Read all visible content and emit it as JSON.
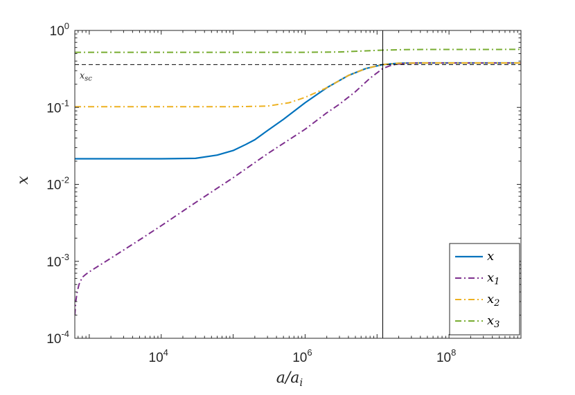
{
  "chart_data": {
    "type": "line",
    "xscale": "log",
    "yscale": "log",
    "xlim": [
      630,
      1000000000
    ],
    "ylim": [
      0.0001,
      1
    ],
    "xlabel": {
      "base": "a/a",
      "sub": "i"
    },
    "ylabel": "x",
    "x_ticks": [
      {
        "value": 10000,
        "base": "10",
        "exp": "4"
      },
      {
        "value": 1000000,
        "base": "10",
        "exp": "6"
      },
      {
        "value": 100000000,
        "base": "10",
        "exp": "8"
      }
    ],
    "y_ticks": [
      {
        "value": 0.0001,
        "base": "10",
        "exp": "-4"
      },
      {
        "value": 0.001,
        "base": "10",
        "exp": "-3"
      },
      {
        "value": 0.01,
        "base": "10",
        "exp": "-2"
      },
      {
        "value": 0.1,
        "base": "10",
        "exp": "-1"
      },
      {
        "value": 1,
        "base": "10",
        "exp": "0"
      }
    ],
    "grid": false,
    "legend_position": "bottom-right",
    "series": [
      {
        "name": "x",
        "sub": "",
        "color": "#0072BD",
        "dash": "solid",
        "width": 2.2,
        "points": [
          [
            630,
            0.0215
          ],
          [
            10000,
            0.0215
          ],
          [
            30000,
            0.0218
          ],
          [
            60000,
            0.024
          ],
          [
            100000,
            0.0275
          ],
          [
            150000,
            0.033
          ],
          [
            200000,
            0.038
          ],
          [
            300000,
            0.05
          ],
          [
            500000,
            0.07
          ],
          [
            1000000,
            0.115
          ],
          [
            2000000,
            0.18
          ],
          [
            4000000,
            0.26
          ],
          [
            7000000,
            0.32
          ],
          [
            12000000,
            0.36
          ],
          [
            20000000,
            0.375
          ],
          [
            40000000,
            0.378
          ],
          [
            1000000000,
            0.378
          ]
        ]
      },
      {
        "name": "x",
        "sub": "1",
        "color": "#7E2F8E",
        "dash": "dashdot",
        "width": 2,
        "points": [
          [
            630,
            0.0002
          ],
          [
            650,
            0.0003
          ],
          [
            680,
            0.0004
          ],
          [
            720,
            0.0005
          ],
          [
            800,
            0.00062
          ],
          [
            900,
            0.00068
          ],
          [
            1000,
            0.00073
          ],
          [
            2000,
            0.0011
          ],
          [
            5000,
            0.0019
          ],
          [
            10000,
            0.0029
          ],
          [
            30000,
            0.0058
          ],
          [
            100000,
            0.0122
          ],
          [
            300000,
            0.025
          ],
          [
            1000000,
            0.052
          ],
          [
            2000000,
            0.085
          ],
          [
            3000000,
            0.11
          ],
          [
            5000000,
            0.16
          ],
          [
            8000000,
            0.24
          ],
          [
            12000000,
            0.32
          ],
          [
            16000000,
            0.355
          ],
          [
            25000000,
            0.375
          ],
          [
            40000000,
            0.378
          ],
          [
            1000000000,
            0.378
          ]
        ]
      },
      {
        "name": "x",
        "sub": "2",
        "color": "#EDB120",
        "dash": "dashdot",
        "width": 2,
        "points": [
          [
            630,
            0.102
          ],
          [
            100000,
            0.102
          ],
          [
            300000,
            0.104
          ],
          [
            600000,
            0.115
          ],
          [
            1000000,
            0.135
          ],
          [
            2000000,
            0.18
          ],
          [
            4000000,
            0.26
          ],
          [
            7000000,
            0.32
          ],
          [
            12000000,
            0.36
          ],
          [
            20000000,
            0.375
          ],
          [
            40000000,
            0.378
          ],
          [
            1000000000,
            0.378
          ]
        ]
      },
      {
        "name": "x",
        "sub": "3",
        "color": "#77AC30",
        "dash": "dashdot",
        "width": 2,
        "points": [
          [
            630,
            0.52
          ],
          [
            1000000,
            0.52
          ],
          [
            3000000,
            0.525
          ],
          [
            6000000,
            0.54
          ],
          [
            12000000,
            0.555
          ],
          [
            30000000,
            0.565
          ],
          [
            1000000000,
            0.567
          ]
        ]
      }
    ],
    "reference_lines": [
      {
        "orientation": "horizontal",
        "value": 0.36,
        "label_base": "x",
        "label_sub": "sc",
        "color": "#000000",
        "dash": "dashed",
        "label_at_x": 1000
      },
      {
        "orientation": "vertical",
        "value": 12000000,
        "color": "#000000",
        "dash": "solid"
      }
    ]
  }
}
